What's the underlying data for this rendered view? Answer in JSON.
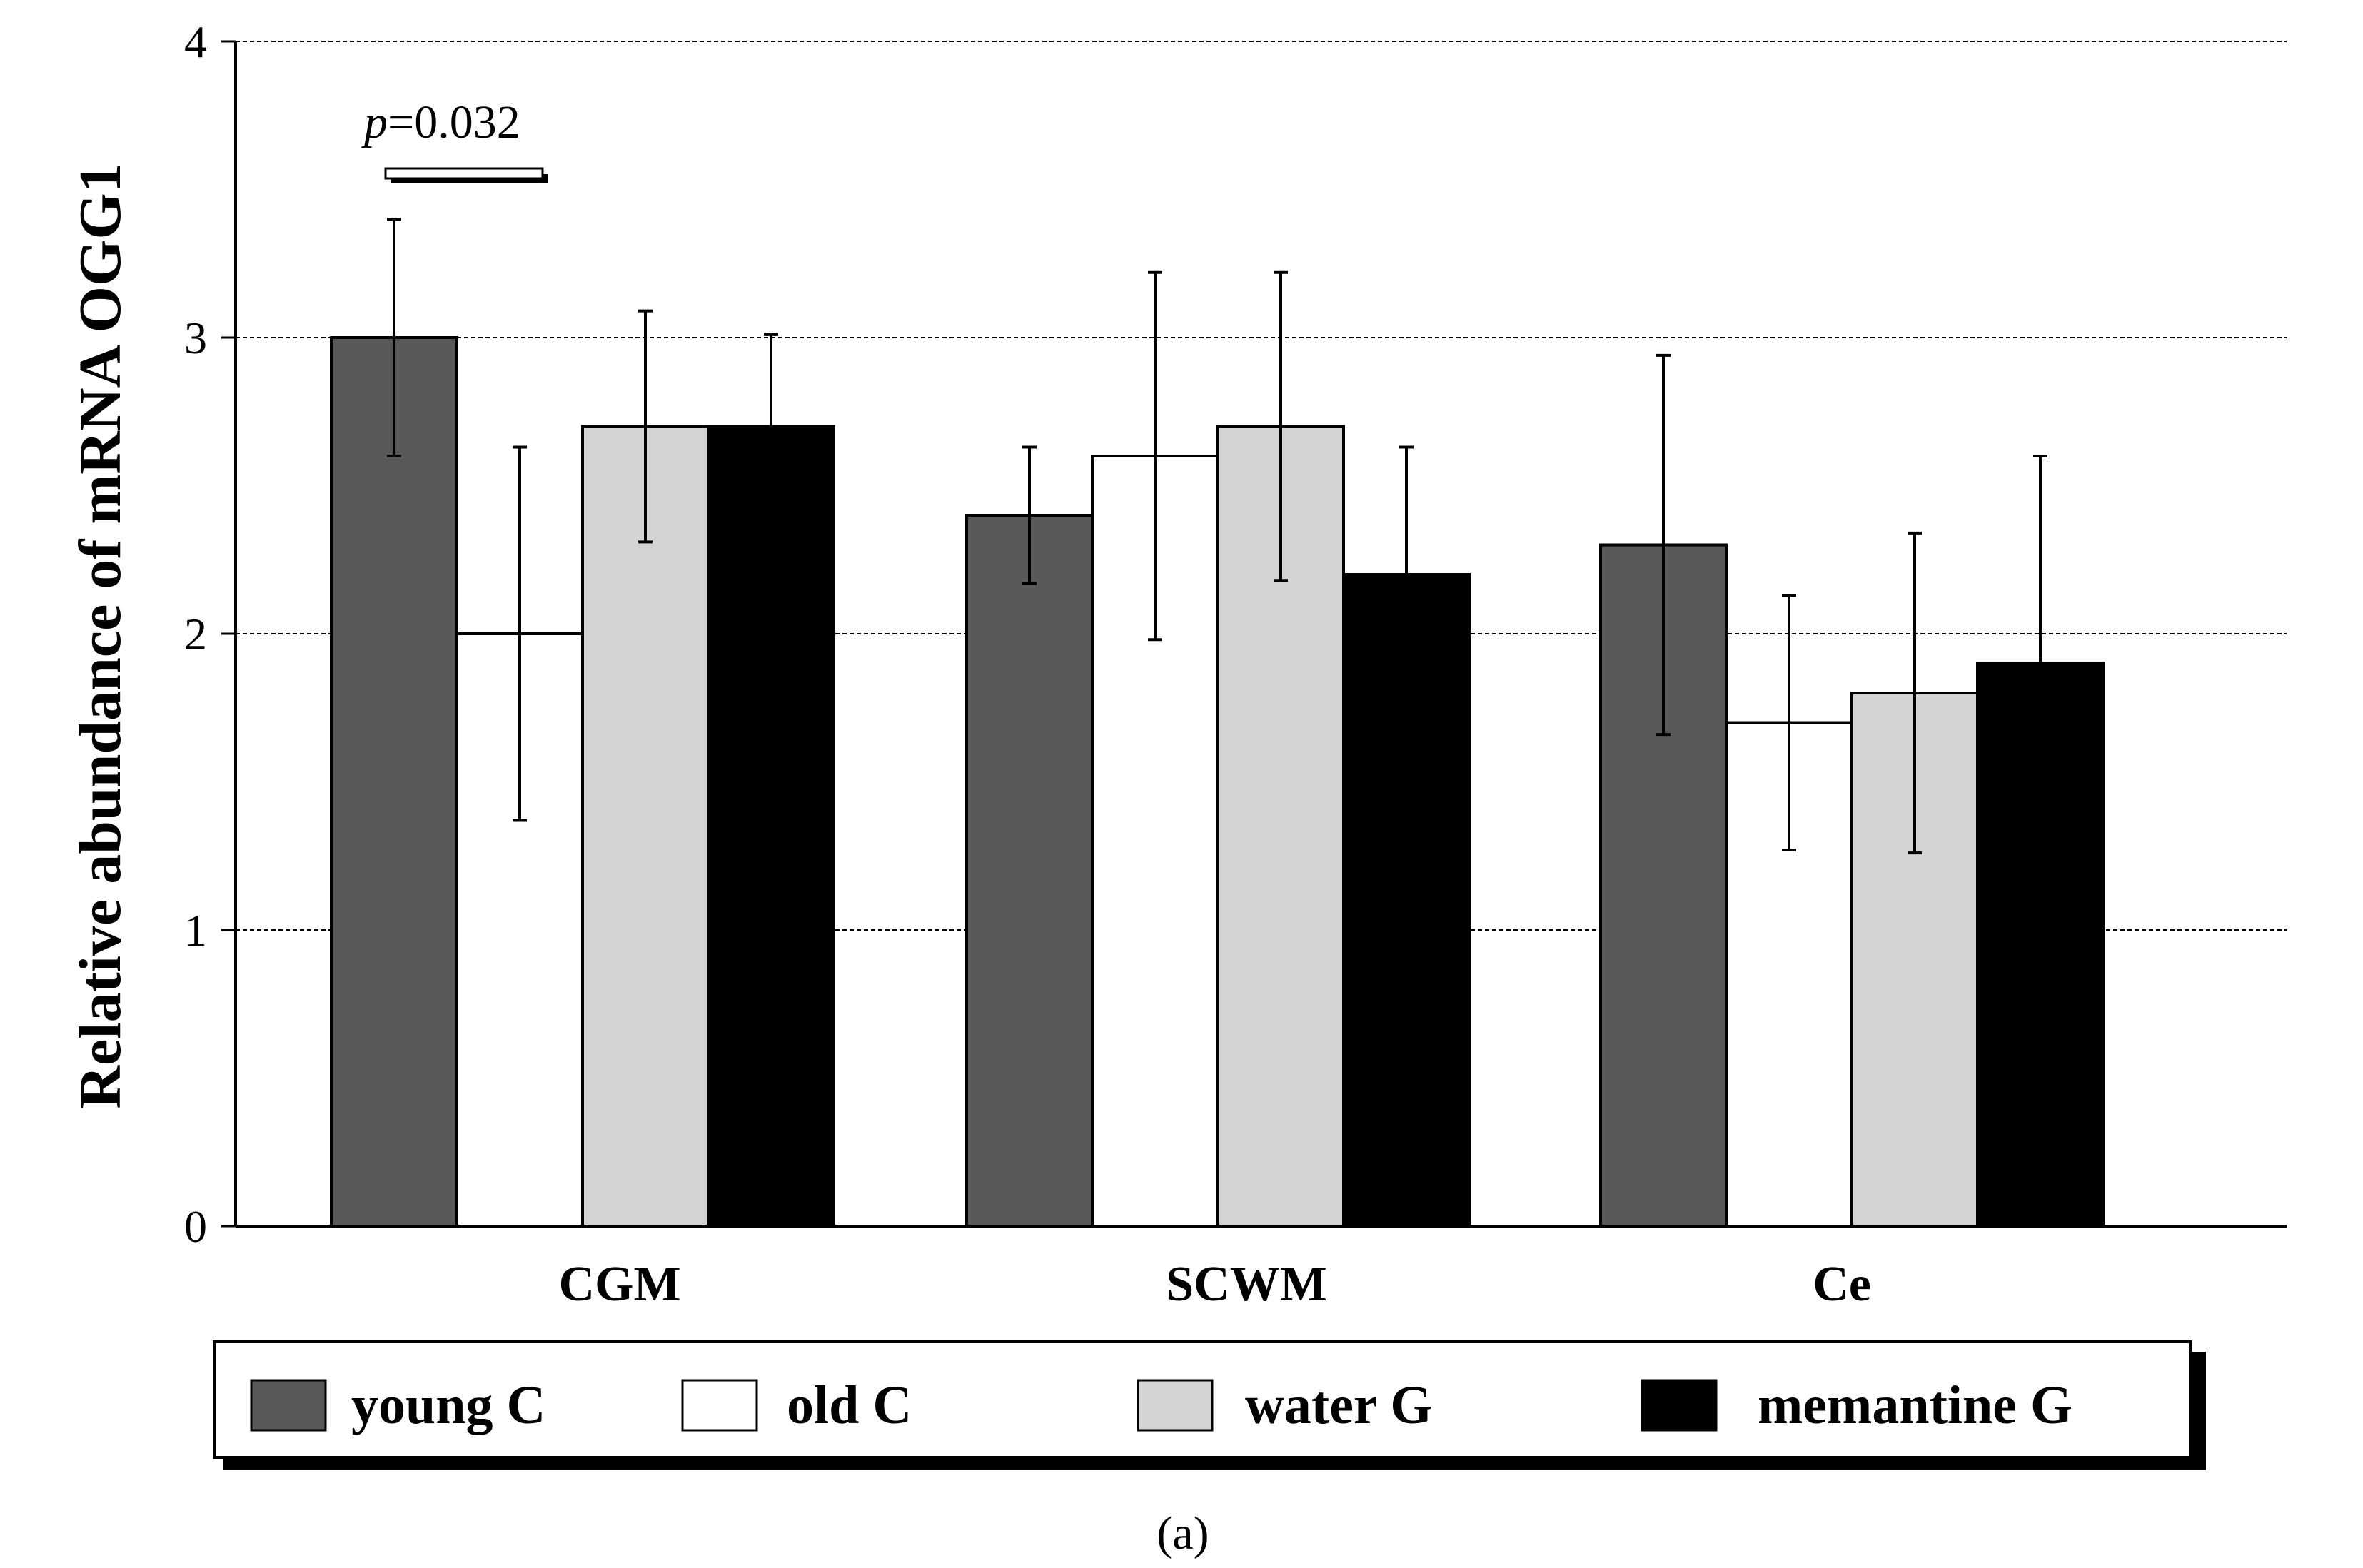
{
  "chart_data": {
    "type": "bar",
    "title": "",
    "xlabel": "",
    "ylabel": "Relative abundance of mRNA OGG1",
    "ylim": [
      0,
      4
    ],
    "yticks": [
      "0",
      "1",
      "2",
      "3",
      "4"
    ],
    "grid": true,
    "categories": [
      "CGM",
      "SCWM",
      "Ce"
    ],
    "series": [
      {
        "name": "young C",
        "color": "#595959",
        "values": [
          3.0,
          2.4,
          2.3
        ],
        "errors": [
          0.4,
          0.23,
          0.64
        ]
      },
      {
        "name": "old C",
        "color": "#ffffff",
        "values": [
          2.0,
          2.6,
          1.7
        ],
        "errors": [
          0.63,
          0.62,
          0.43
        ]
      },
      {
        "name": "water G",
        "color": "#d3d3d3",
        "values": [
          2.7,
          2.7,
          1.8
        ],
        "errors": [
          0.39,
          0.52,
          0.54
        ]
      },
      {
        "name": "memantine G",
        "color": "#000000",
        "values": [
          2.7,
          2.2,
          1.9
        ],
        "errors": [
          0.31,
          0.43,
          0.7
        ]
      }
    ],
    "legend_position": "bottom",
    "annotation": {
      "p_symbol": "p",
      "p_value": "=0.032",
      "category": "CGM",
      "between": [
        "young C",
        "old C"
      ]
    },
    "caption": "(a)"
  }
}
